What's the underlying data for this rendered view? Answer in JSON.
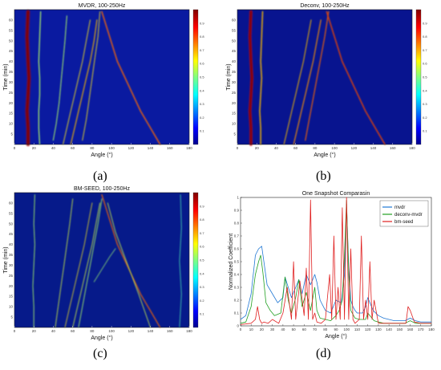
{
  "chart_data": [
    {
      "type": "heatmap",
      "panel_label": "(a)",
      "title": "MVDR, 100-250Hz",
      "xlabel": "Angle (°)",
      "ylabel": "Time (min)",
      "x_ticks": [
        "0",
        "20",
        "40",
        "60",
        "80",
        "100",
        "120",
        "140",
        "160",
        "180"
      ],
      "y_ticks": [
        "5",
        "10",
        "15",
        "20",
        "25",
        "30",
        "35",
        "40",
        "45",
        "50",
        "55",
        "60"
      ],
      "xlim": [
        0,
        180
      ],
      "ylim": [
        0,
        65
      ],
      "colorbar_ticks": [
        "0.1",
        "0.2",
        "0.3",
        "0.4",
        "0.5",
        "0.6",
        "0.7",
        "0.8",
        "0.9"
      ],
      "colormap": "jet",
      "background_color": "#0a1aa0",
      "tracks": [
        {
          "x": [
            14,
            14,
            13,
            14,
            15,
            14,
            13,
            14
          ],
          "t": [
            0,
            8,
            16,
            24,
            32,
            40,
            52,
            64
          ],
          "intensity": 0.95,
          "width": 3.2
        },
        {
          "x": [
            26,
            25,
            25,
            26,
            26,
            25,
            26,
            27
          ],
          "t": [
            0,
            8,
            16,
            24,
            32,
            40,
            52,
            64
          ],
          "intensity": 0.45,
          "width": 1.0
        },
        {
          "x": [
            40,
            43,
            46,
            48,
            50,
            52,
            54
          ],
          "t": [
            2,
            10,
            20,
            30,
            40,
            50,
            62
          ],
          "intensity": 0.45,
          "width": 0.8
        },
        {
          "x": [
            50,
            54,
            58,
            62,
            66,
            70,
            74,
            78
          ],
          "t": [
            0,
            8,
            16,
            24,
            32,
            40,
            50,
            60
          ],
          "intensity": 0.55,
          "width": 0.8
        },
        {
          "x": [
            58,
            62,
            66,
            70,
            74,
            78,
            82,
            85
          ],
          "t": [
            0,
            8,
            16,
            24,
            32,
            40,
            50,
            60
          ],
          "intensity": 0.6,
          "width": 0.9
        },
        {
          "x": [
            70,
            74,
            77,
            80,
            83,
            86,
            88
          ],
          "t": [
            2,
            12,
            22,
            32,
            42,
            52,
            64
          ],
          "intensity": 0.55,
          "width": 0.8
        },
        {
          "x": [
            150,
            140,
            130,
            122,
            114,
            106,
            98,
            90
          ],
          "t": [
            0,
            8,
            16,
            24,
            32,
            40,
            52,
            64
          ],
          "intensity": 0.7,
          "width": 1.1
        }
      ]
    },
    {
      "type": "heatmap",
      "panel_label": "(b)",
      "title": "Deconv, 100-250Hz",
      "xlabel": "Angle (°)",
      "ylabel": "Time (min)",
      "x_ticks": [
        "0",
        "20",
        "40",
        "60",
        "80",
        "100",
        "120",
        "140",
        "160",
        "180"
      ],
      "y_ticks": [
        "5",
        "10",
        "15",
        "20",
        "25",
        "30",
        "35",
        "40",
        "45",
        "50",
        "55",
        "60"
      ],
      "xlim": [
        0,
        180
      ],
      "ylim": [
        0,
        65
      ],
      "colorbar_ticks": [
        "0.1",
        "0.2",
        "0.3",
        "0.4",
        "0.5",
        "0.6",
        "0.7",
        "0.8",
        "0.9"
      ],
      "colormap": "jet",
      "background_color": "#08148f",
      "tracks": [
        {
          "x": [
            14,
            14,
            13,
            14,
            15,
            14,
            13,
            14
          ],
          "t": [
            0,
            8,
            16,
            24,
            32,
            40,
            52,
            64
          ],
          "intensity": 0.9,
          "width": 2.6
        },
        {
          "x": [
            24,
            24,
            23,
            24,
            25,
            24,
            25,
            26
          ],
          "t": [
            0,
            8,
            16,
            24,
            32,
            40,
            52,
            64
          ],
          "intensity": 0.6,
          "width": 1.2
        },
        {
          "x": [
            48,
            52,
            56,
            60,
            64,
            68,
            72,
            76
          ],
          "t": [
            0,
            8,
            16,
            24,
            32,
            40,
            50,
            60
          ],
          "intensity": 0.6,
          "width": 0.8
        },
        {
          "x": [
            58,
            62,
            66,
            70,
            74,
            78,
            82,
            86
          ],
          "t": [
            0,
            8,
            16,
            24,
            32,
            40,
            50,
            60
          ],
          "intensity": 0.65,
          "width": 0.9
        },
        {
          "x": [
            70,
            74,
            78,
            82,
            86,
            90,
            94
          ],
          "t": [
            2,
            12,
            22,
            32,
            42,
            52,
            64
          ],
          "intensity": 0.7,
          "width": 0.9
        },
        {
          "x": [
            152,
            142,
            132,
            124,
            116,
            108,
            100,
            92
          ],
          "t": [
            0,
            8,
            16,
            24,
            32,
            40,
            52,
            64
          ],
          "intensity": 0.75,
          "width": 1.1
        }
      ]
    },
    {
      "type": "heatmap",
      "panel_label": "(c)",
      "title": "BM-SEED, 100-250Hz",
      "xlabel": "Angle (°)",
      "ylabel": "Time (min)",
      "x_ticks": [
        "0",
        "20",
        "40",
        "60",
        "80",
        "100",
        "120",
        "140",
        "160",
        "180"
      ],
      "y_ticks": [
        "5",
        "10",
        "15",
        "20",
        "25",
        "30",
        "35",
        "40",
        "45",
        "50",
        "55",
        "60"
      ],
      "xlim": [
        0,
        180
      ],
      "ylim": [
        0,
        65
      ],
      "colorbar_ticks": [
        "0.1",
        "0.2",
        "0.3",
        "0.4",
        "0.5",
        "0.6",
        "0.7",
        "0.8",
        "0.9"
      ],
      "colormap": "jet",
      "background_color": "#061a8a",
      "tracks": [
        {
          "x": [
            20,
            20,
            19,
            20,
            21,
            20,
            21
          ],
          "t": [
            0,
            10,
            20,
            30,
            40,
            50,
            64
          ],
          "intensity": 0.45,
          "width": 0.7
        },
        {
          "x": [
            42,
            45,
            48,
            51,
            54,
            57,
            60
          ],
          "t": [
            0,
            10,
            20,
            30,
            40,
            50,
            62
          ],
          "intensity": 0.5,
          "width": 0.7
        },
        {
          "x": [
            52,
            56,
            60,
            64,
            68,
            72,
            76,
            80
          ],
          "t": [
            0,
            8,
            16,
            24,
            32,
            40,
            50,
            60
          ],
          "intensity": 0.55,
          "width": 0.7
        },
        {
          "x": [
            60,
            64,
            68,
            72,
            76,
            80,
            84,
            88
          ],
          "t": [
            0,
            8,
            16,
            24,
            32,
            40,
            50,
            60
          ],
          "intensity": 0.5,
          "width": 0.7
        },
        {
          "x": [
            66,
            70,
            74,
            78,
            82,
            86,
            90
          ],
          "t": [
            0,
            10,
            20,
            30,
            40,
            50,
            62
          ],
          "intensity": 0.45,
          "width": 0.7
        },
        {
          "x": [
            82,
            90,
            98,
            104
          ],
          "t": [
            22,
            28,
            34,
            38
          ],
          "intensity": 0.45,
          "width": 0.6
        },
        {
          "x": [
            150,
            140,
            130,
            122,
            114,
            106,
            98,
            90
          ],
          "t": [
            0,
            8,
            16,
            24,
            32,
            40,
            52,
            64
          ],
          "intensity": 0.7,
          "width": 0.9
        },
        {
          "x": [
            140,
            134,
            128,
            120,
            112,
            104,
            96
          ],
          "t": [
            0,
            8,
            16,
            26,
            36,
            46,
            60
          ],
          "intensity": 0.5,
          "width": 0.7
        },
        {
          "x": [
            170,
            172,
            170,
            172,
            171
          ],
          "t": [
            0,
            16,
            32,
            48,
            64
          ],
          "intensity": 0.35,
          "width": 0.6
        }
      ]
    },
    {
      "type": "line",
      "panel_label": "(d)",
      "title": "One Snapshot Comparasin",
      "xlabel": "Angle (°)",
      "ylabel": "Normalized Coefficient",
      "xlim": [
        0,
        180
      ],
      "ylim": [
        0,
        1
      ],
      "x_ticks": [
        "0",
        "10",
        "20",
        "30",
        "40",
        "50",
        "60",
        "70",
        "80",
        "90",
        "100",
        "110",
        "120",
        "130",
        "140",
        "150",
        "160",
        "170",
        "180"
      ],
      "y_ticks": [
        "0",
        "0.1",
        "0.2",
        "0.3",
        "0.4",
        "0.5",
        "0.6",
        "0.7",
        "0.8",
        "0.9",
        "1"
      ],
      "legend": "top-right",
      "series": [
        {
          "name": "mvdr",
          "color": "#1f77d4",
          "x": [
            0,
            5,
            10,
            14,
            17,
            20,
            22,
            25,
            30,
            35,
            40,
            42,
            45,
            48,
            52,
            55,
            58,
            62,
            66,
            70,
            72,
            75,
            80,
            85,
            90,
            95,
            98,
            100,
            102,
            104,
            106,
            108,
            110,
            115,
            118,
            120,
            125,
            130,
            135,
            140,
            145,
            150,
            155,
            160,
            165,
            170,
            175,
            180
          ],
          "y": [
            0.05,
            0.08,
            0.25,
            0.55,
            0.6,
            0.62,
            0.5,
            0.32,
            0.25,
            0.18,
            0.22,
            0.38,
            0.3,
            0.22,
            0.3,
            0.36,
            0.25,
            0.4,
            0.32,
            0.4,
            0.34,
            0.2,
            0.12,
            0.1,
            0.2,
            0.18,
            0.4,
            0.95,
            0.45,
            0.2,
            0.15,
            0.12,
            0.1,
            0.1,
            0.15,
            0.22,
            0.12,
            0.08,
            0.06,
            0.05,
            0.04,
            0.04,
            0.04,
            0.06,
            0.04,
            0.03,
            0.03,
            0.03
          ]
        },
        {
          "name": "deconv-mvdr",
          "color": "#22a022",
          "x": [
            0,
            5,
            10,
            14,
            17,
            19,
            21,
            24,
            28,
            32,
            38,
            42,
            45,
            48,
            52,
            55,
            58,
            62,
            66,
            70,
            72,
            75,
            80,
            85,
            90,
            93,
            96,
            98,
            100,
            102,
            104,
            108,
            112,
            118,
            120,
            122,
            126,
            130,
            135,
            140,
            145,
            150,
            155,
            160,
            165,
            170,
            175,
            180
          ],
          "y": [
            0.02,
            0.03,
            0.15,
            0.4,
            0.5,
            0.55,
            0.42,
            0.18,
            0.12,
            0.08,
            0.1,
            0.38,
            0.2,
            0.1,
            0.22,
            0.36,
            0.15,
            0.26,
            0.12,
            0.3,
            0.12,
            0.06,
            0.05,
            0.04,
            0.08,
            0.12,
            0.2,
            0.55,
            0.98,
            0.4,
            0.12,
            0.06,
            0.05,
            0.05,
            0.1,
            0.08,
            0.04,
            0.03,
            0.02,
            0.02,
            0.02,
            0.02,
            0.02,
            0.04,
            0.02,
            0.02,
            0.02,
            0.02
          ]
        },
        {
          "name": "bm-seed",
          "color": "#e02020",
          "x": [
            0,
            10,
            14,
            16,
            18,
            20,
            22,
            26,
            30,
            36,
            40,
            44,
            48,
            50,
            52,
            56,
            60,
            62,
            64,
            66,
            68,
            70,
            72,
            76,
            80,
            84,
            86,
            88,
            90,
            92,
            94,
            96,
            98,
            100,
            102,
            104,
            106,
            108,
            112,
            114,
            116,
            118,
            120,
            122,
            124,
            126,
            130,
            140,
            150,
            156,
            158,
            160,
            164,
            170,
            180
          ],
          "y": [
            0.01,
            0.02,
            0.05,
            0.15,
            0.05,
            0.02,
            0.03,
            0.02,
            0.05,
            0.02,
            0.1,
            0.3,
            0.05,
            0.5,
            0.05,
            0.35,
            0.08,
            0.45,
            0.05,
            0.98,
            0.05,
            0.1,
            0.03,
            0.02,
            0.05,
            0.4,
            0.05,
            0.7,
            0.05,
            0.3,
            0.05,
            0.92,
            0.05,
            1.0,
            0.05,
            0.6,
            0.05,
            0.02,
            0.05,
            0.7,
            0.05,
            0.2,
            0.05,
            0.5,
            0.05,
            0.2,
            0.02,
            0.02,
            0.02,
            0.02,
            0.15,
            0.12,
            0.03,
            0.02,
            0.02
          ]
        }
      ]
    }
  ]
}
